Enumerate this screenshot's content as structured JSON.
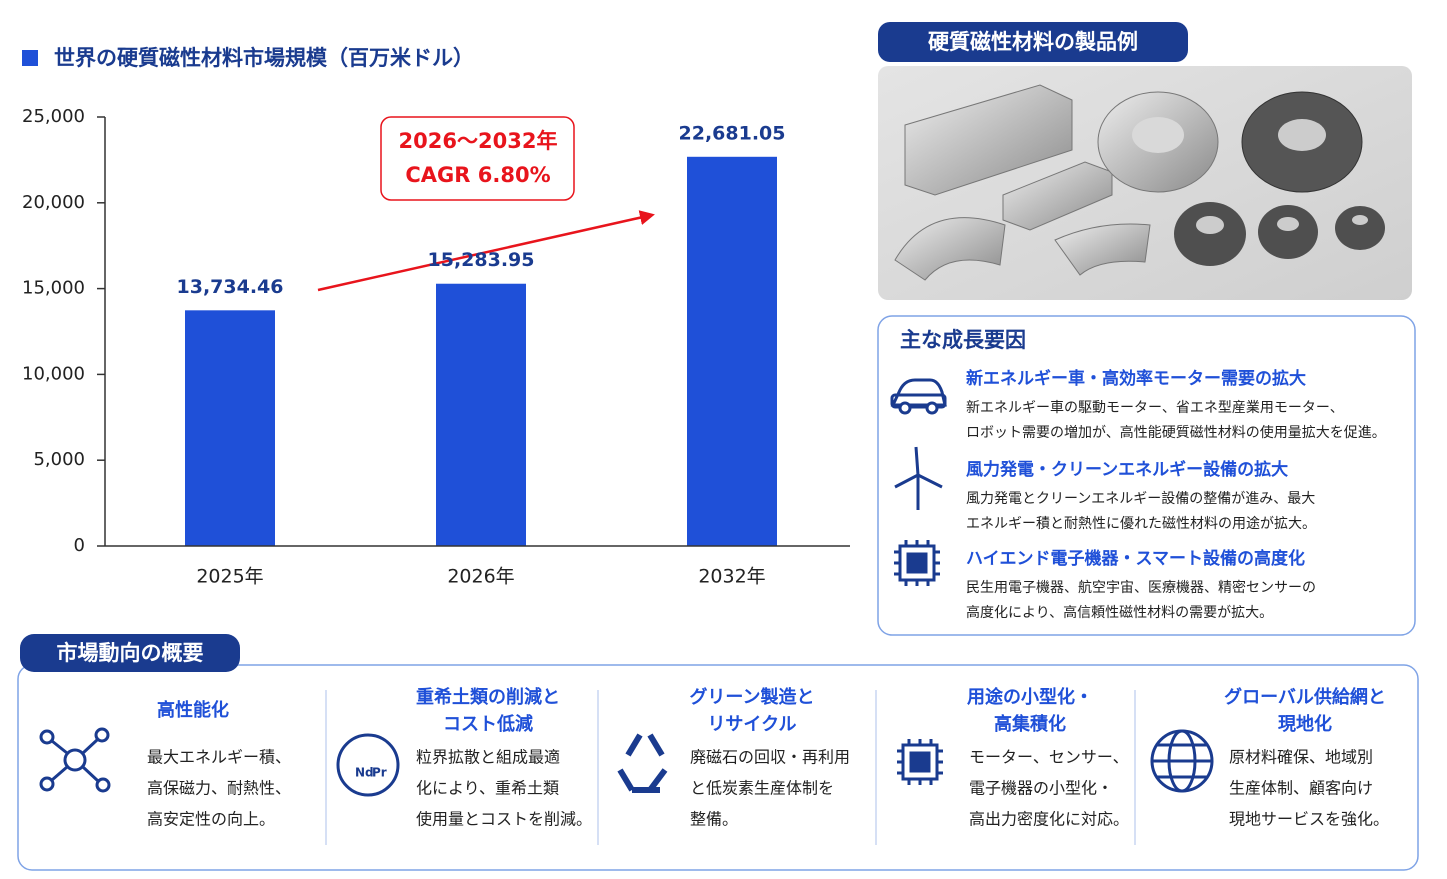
{
  "chart_data": {
    "type": "bar",
    "title": "世界の硬質磁性材料市場規模（百万米ドル）",
    "categories": [
      "2025年",
      "2026年",
      "2032年"
    ],
    "values": [
      13734.46,
      15283.95,
      22681.05
    ],
    "value_labels": [
      "13,734.46",
      "15,283.95",
      "22,681.05"
    ],
    "color": "#1f50d8",
    "ylim": [
      0,
      25000
    ],
    "yticks": [
      0,
      {
        "value": 5000,
        "label": "5,000"
      },
      {
        "value": 10000,
        "label": "10,000"
      },
      {
        "value": 15000,
        "label": "15,000"
      },
      {
        "value": 20000,
        "label": "20,000"
      },
      {
        "value": 25000,
        "label": "25,000"
      }
    ],
    "annotations": [
      "2026～2032年",
      "CAGR 6.80%"
    ]
  },
  "products": {
    "title": "硬質磁性材料の製品例"
  },
  "growth_factors": {
    "title": "主な成長要因",
    "items": [
      {
        "heading": "新エネルギー車・高効率モーター需要の拡大",
        "lines": [
          "新エネルギー車の駆動モーター、省エネ型産業用モーター、",
          "ロボット需要の増加が、高性能硬質磁性材料の使用量拡大を促進。"
        ]
      },
      {
        "heading": "風力発電・クリーンエネルギー設備の拡大",
        "lines": [
          "風力発電とクリーンエネルギー設備の整備が進み、最大",
          "エネルギー積と耐熱性に優れた磁性材料の用途が拡大。"
        ]
      },
      {
        "heading": "ハイエンド電子機器・スマート設備の高度化",
        "lines": [
          "民生用電子機器、航空宇宙、医療機器、精密センサーの",
          "高度化により、高信頼性磁性材料の需要が拡大。"
        ]
      }
    ]
  },
  "market_trends": {
    "title": "市場動向の概要",
    "items": [
      {
        "heading": [
          "高性能化"
        ],
        "lines": [
          "最大エネルギー積、",
          "高保磁力、耐熱性、",
          "高安定性の向上。"
        ]
      },
      {
        "heading": [
          "重希土類の削減と",
          "コスト低減"
        ],
        "lines": [
          "粒界拡散と組成最適",
          "化により、重希土類",
          "使用量とコストを削減。"
        ]
      },
      {
        "heading": [
          "グリーン製造と",
          "リサイクル"
        ],
        "lines": [
          "廃磁石の回収・再利用",
          "と低炭素生産体制を",
          "整備。"
        ]
      },
      {
        "heading": [
          "用途の小型化・",
          "高集積化"
        ],
        "lines": [
          "モーター、センサー、",
          "電子機器の小型化・",
          "高出力密度化に対応。"
        ]
      },
      {
        "heading": [
          "グローバル供給網と",
          "現地化"
        ],
        "lines": [
          "原材料確保、地域別",
          "生産体制、顧客向け",
          "現地サービスを強化。"
        ]
      }
    ]
  }
}
